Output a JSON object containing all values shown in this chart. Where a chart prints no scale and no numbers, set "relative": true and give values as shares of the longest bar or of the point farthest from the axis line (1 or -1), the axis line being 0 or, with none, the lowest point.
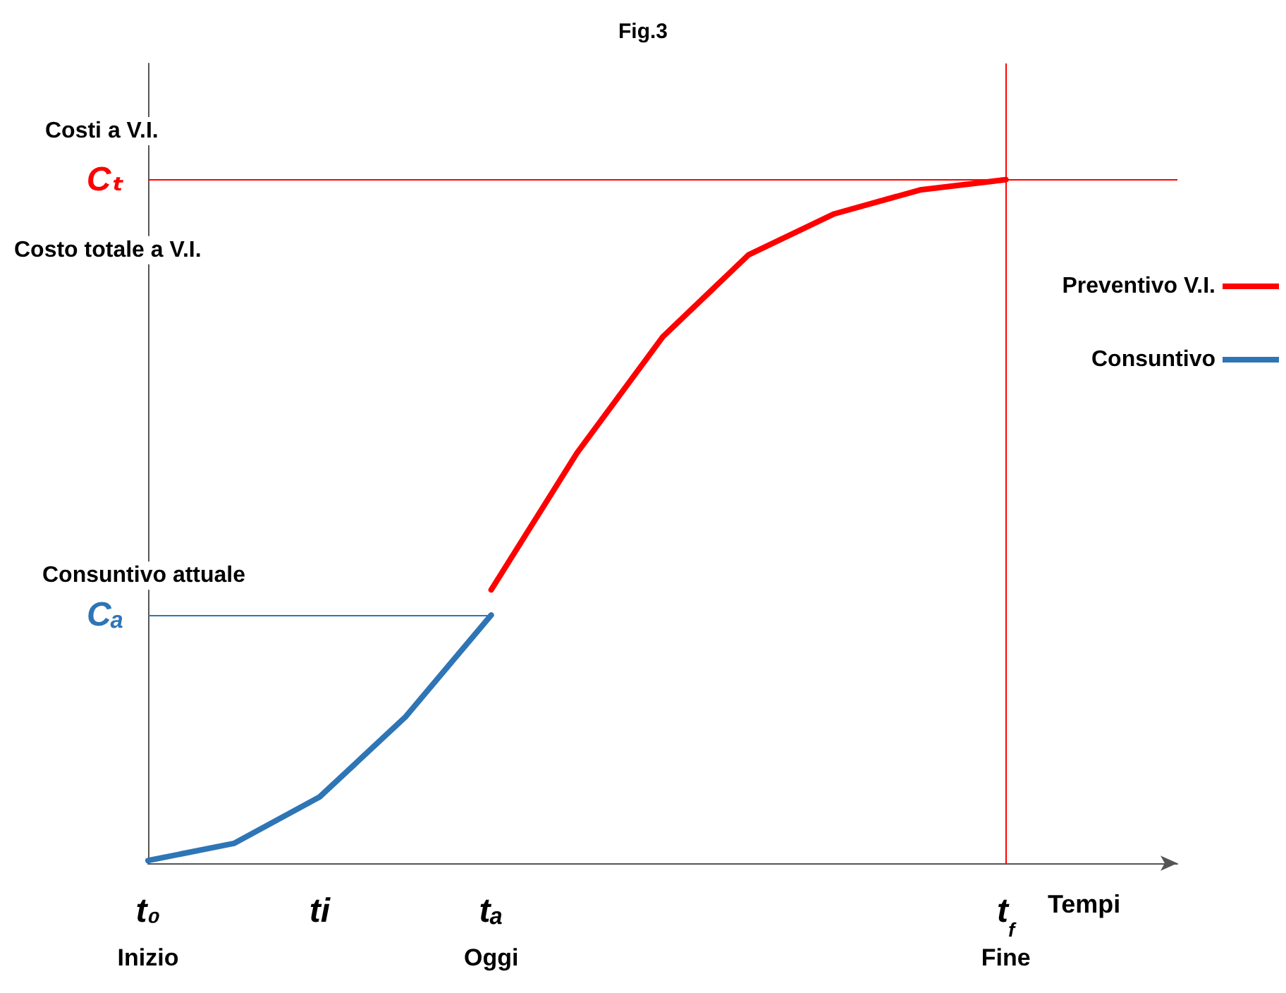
{
  "chart_data": {
    "type": "line",
    "title": "Fig.3",
    "xlabel": "Tempi",
    "ylabel": "Costi a V.I.",
    "relative": true,
    "categories": [
      "t₀\nInizio",
      null,
      "ti",
      null,
      "tₐ\nOggi",
      null,
      null,
      null,
      null,
      null,
      "t$_{f}$\nFine",
      null,
      null
    ],
    "series": [
      {
        "name": "Preventivo V.I.",
        "color": "#ff0000",
        "values": [
          null,
          null,
          null,
          null,
          0.4,
          0.6,
          0.77,
          0.89,
          0.95,
          0.985,
          1.0,
          null,
          null
        ]
      },
      {
        "name": "Consuntivo",
        "color": "#2e75b6",
        "values": [
          0.004,
          0.029,
          0.097,
          0.214,
          0.363,
          null,
          null,
          null,
          null,
          null,
          null,
          null,
          null
        ]
      }
    ],
    "ref_lines": [
      {
        "axis": "y",
        "value": 1,
        "label": "Cₜ",
        "color": "#ff0000"
      },
      {
        "axis": "y",
        "value": 0.363,
        "label": "Cₐ",
        "color": "#2e75b6"
      },
      {
        "axis": "x",
        "value": "t$_{f}$\nFine",
        "color": "#ff0000"
      }
    ],
    "annotations": [
      "Costo totale a V.I.",
      "Consuntivo attuale"
    ],
    "legend": "right",
    "marker": "none",
    "line_style": "solid",
    "grid": false
  }
}
